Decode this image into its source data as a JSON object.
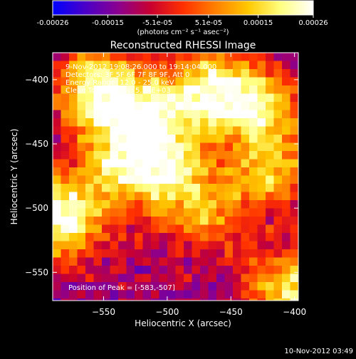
{
  "colorbar": {
    "tick_labels": [
      "-0.00026",
      "-0.00015",
      "-5.1e-05",
      "5.1e-05",
      "0.00015",
      "0.00026"
    ],
    "tick_values": [
      -0.00026,
      -0.00015,
      -5.1e-05,
      5.1e-05,
      0.00015,
      0.00026
    ],
    "range": [
      -0.00026,
      0.00026
    ],
    "unit_label": "(photons cm⁻² s⁻¹ asec⁻²)",
    "colors": [
      "#0000ff",
      "#4a00c8",
      "#8a0090",
      "#c80030",
      "#ff3000",
      "#ff8000",
      "#ffc800",
      "#ffff80",
      "#ffffff"
    ]
  },
  "chart_data": {
    "type": "heatmap",
    "title": "Reconstructed RHESSI Image",
    "xlabel": "Heliocentric X (arcsec)",
    "ylabel": "Heliocentric Y (arcsec)",
    "xlim": [
      -590,
      -397
    ],
    "ylim": [
      -572,
      -379
    ],
    "x_ticks": [
      -550,
      -500,
      -450,
      -400
    ],
    "x_tick_labels": [
      "−550",
      "−500",
      "−450",
      "−400"
    ],
    "y_ticks": [
      -550,
      -500,
      -450,
      -400
    ],
    "y_tick_labels": [
      "−550",
      "−500",
      "−450",
      "−400"
    ],
    "annotations": [
      "9-Nov-2012 19:08:26.000 to 19:14:04.000",
      "Detectors: 3F 5F 6F 7F 8F 9F, Att 0",
      "Energy Range: 12.0 - 25.0 keV",
      "Clean    Total counts: 5.24E+03"
    ],
    "peak_label": "Position of Peak = [-583,-507]",
    "peak": [
      -583,
      -507
    ],
    "grid": false,
    "bright_regions": [
      {
        "x": -520,
        "y": -430,
        "level": 0.85
      },
      {
        "x": -555,
        "y": -408,
        "level": 0.9
      },
      {
        "x": -470,
        "y": -410,
        "level": 0.85
      },
      {
        "x": -430,
        "y": -420,
        "level": 0.8
      },
      {
        "x": -500,
        "y": -470,
        "level": 0.75
      },
      {
        "x": -583,
        "y": -507,
        "level": 1.0
      },
      {
        "x": -405,
        "y": -565,
        "level": 0.8
      },
      {
        "x": -420,
        "y": -470,
        "level": 0.65
      },
      {
        "x": -470,
        "y": -505,
        "level": 0.5
      },
      {
        "x": -540,
        "y": -470,
        "level": 0.6
      }
    ]
  },
  "footer": {
    "timestamp": "10-Nov-2012 03:49"
  }
}
